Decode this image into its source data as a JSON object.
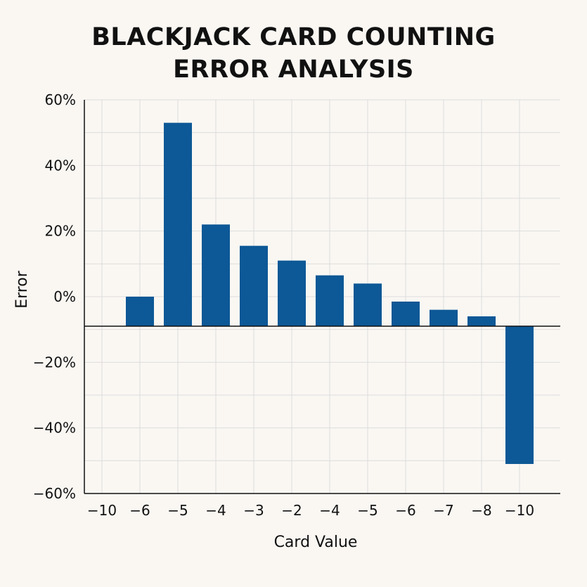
{
  "chart_data": {
    "type": "bar",
    "title_lines": [
      "BLACKJACK CARD COUNTING",
      "ERROR ANALYSIS"
    ],
    "xlabel": "Card Value",
    "ylabel": "Error",
    "x_tick_labels": [
      "−10",
      "−6",
      "−5",
      "−4",
      "−3",
      "−2",
      "−4",
      "−5",
      "−6",
      "−7",
      "−8",
      "−10"
    ],
    "bar_categories": [
      "−6",
      "−5",
      "−4",
      "−3",
      "−2",
      "−4",
      "−5",
      "−6",
      "−7",
      "−8",
      "−10"
    ],
    "bar_tops": [
      0,
      53,
      22,
      15.5,
      11,
      6.5,
      4,
      -1.5,
      -4,
      -6,
      -9
    ],
    "bar_bottoms": [
      -9,
      -9,
      -9,
      -9,
      -9,
      -9,
      -9,
      -9,
      -9,
      -9,
      -51
    ],
    "baseline": -9,
    "y_ticks": [
      60,
      40,
      20,
      0,
      -20,
      -40,
      -60
    ],
    "y_tick_labels": [
      "60%",
      "40%",
      "20%",
      "0%",
      "−20%",
      "−40%",
      "−60%"
    ],
    "ylim": [
      -60,
      60
    ],
    "grid": true,
    "bar_color": "#0d5896"
  }
}
